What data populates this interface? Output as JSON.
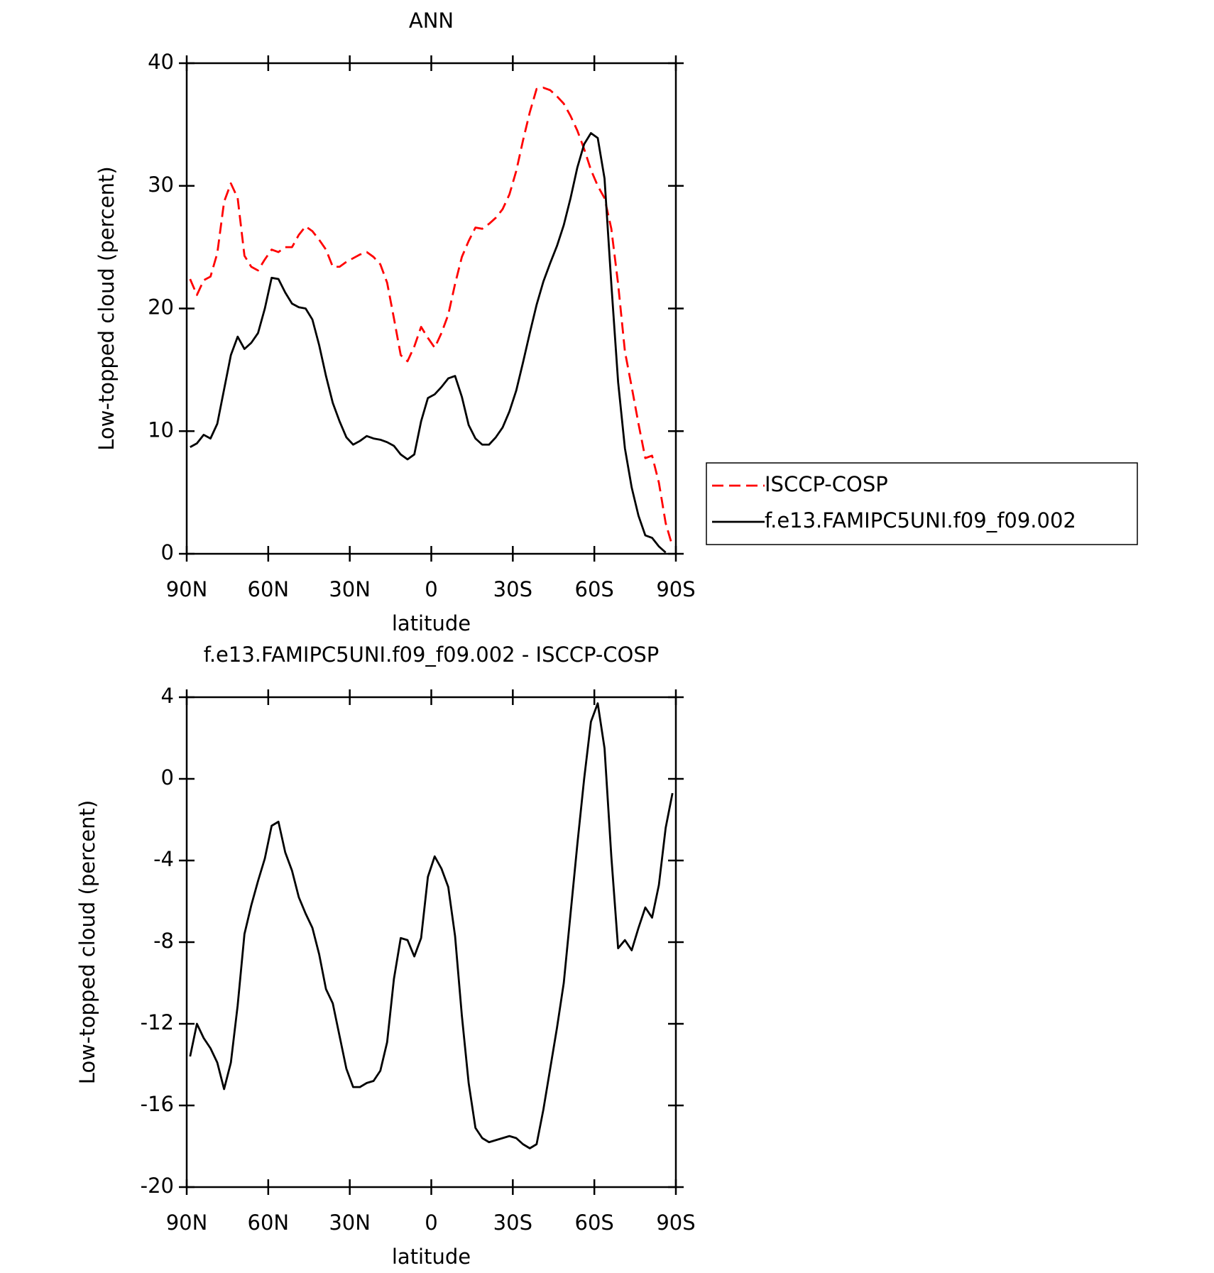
{
  "chart_data": [
    {
      "type": "line",
      "title": "ANN",
      "xlabel": "latitude",
      "ylabel": "Low-topped cloud (percent)",
      "x": [
        88.75,
        86.25,
        83.75,
        81.25,
        78.75,
        76.25,
        73.75,
        71.25,
        68.75,
        66.25,
        63.75,
        61.25,
        58.75,
        56.25,
        53.75,
        51.25,
        48.75,
        46.25,
        43.75,
        41.25,
        38.75,
        36.25,
        33.75,
        31.25,
        28.75,
        26.25,
        23.75,
        21.25,
        18.75,
        16.25,
        13.75,
        11.25,
        8.75,
        6.25,
        3.75,
        1.25,
        -1.25,
        -3.75,
        -6.25,
        -8.75,
        -11.25,
        -13.75,
        -16.25,
        -18.75,
        -21.25,
        -23.75,
        -26.25,
        -28.75,
        -31.25,
        -33.75,
        -36.25,
        -38.75,
        -41.25,
        -43.75,
        -46.25,
        -48.75,
        -51.25,
        -53.75,
        -56.25,
        -58.75,
        -61.25,
        -63.75,
        -66.25,
        -68.75,
        -71.25,
        -73.75,
        -76.25,
        -78.75,
        -81.25,
        -83.75,
        -86.25,
        -88.75
      ],
      "series": [
        {
          "name": "ISCCP-COSP",
          "color": "#ff0000",
          "line_style": "dashed",
          "values": [
            22.4,
            21.1,
            22.3,
            22.6,
            24.5,
            28.7,
            30.2,
            29.0,
            24.3,
            23.4,
            23.1,
            24.0,
            24.8,
            24.6,
            25.0,
            25.0,
            26.0,
            26.7,
            26.3,
            25.6,
            24.8,
            23.4,
            23.4,
            23.8,
            24.1,
            24.4,
            24.6,
            24.2,
            23.6,
            22.1,
            19.2,
            16.2,
            15.7,
            16.9,
            18.5,
            17.6,
            16.8,
            18.0,
            19.5,
            22.0,
            24.2,
            25.5,
            26.6,
            26.5,
            26.9,
            27.4,
            28.1,
            29.3,
            31.2,
            33.7,
            36.0,
            37.9,
            38.0,
            37.8,
            37.3,
            36.7,
            35.7,
            34.5,
            33.0,
            31.3,
            30.0,
            29.0,
            26.5,
            22.0,
            16.5,
            13.6,
            10.6,
            7.8,
            8.0,
            5.8,
            2.5,
            0.6
          ]
        },
        {
          "name": "f.e13.FAMIPC5UNI.f09_f09.002",
          "color": "#000000",
          "line_style": "solid",
          "values": [
            8.7,
            9.0,
            9.7,
            9.4,
            10.6,
            13.4,
            16.2,
            17.7,
            16.7,
            17.2,
            18.0,
            20.0,
            22.5,
            22.4,
            21.3,
            20.4,
            20.1,
            20.0,
            19.1,
            17.0,
            14.5,
            12.3,
            10.8,
            9.5,
            8.9,
            9.2,
            9.6,
            9.4,
            9.3,
            9.1,
            8.8,
            8.1,
            7.7,
            8.1,
            10.8,
            12.7,
            13.0,
            13.6,
            14.3,
            14.5,
            12.8,
            10.5,
            9.4,
            8.9,
            8.9,
            9.5,
            10.3,
            11.6,
            13.3,
            15.6,
            18.0,
            20.3,
            22.2,
            23.7,
            25.1,
            26.8,
            29.0,
            31.5,
            33.4,
            34.3,
            33.9,
            30.6,
            22.0,
            14.0,
            8.6,
            5.4,
            3.1,
            1.5,
            1.3,
            0.6,
            0.1,
            null
          ]
        }
      ],
      "xlim": [
        90,
        -90
      ],
      "xticks": [
        {
          "value": 90,
          "label": "90N"
        },
        {
          "value": 60,
          "label": "60N"
        },
        {
          "value": 30,
          "label": "30N"
        },
        0,
        {
          "value": -30,
          "label": "30S"
        },
        {
          "value": -60,
          "label": "60S"
        },
        {
          "value": -90,
          "label": "90S"
        }
      ],
      "ylim": [
        0,
        40
      ],
      "yticks": [
        0,
        10,
        20,
        30,
        40
      ],
      "legend": "outside right"
    },
    {
      "type": "line",
      "title": "f.e13.FAMIPC5UNI.f09_f09.002 - ISCCP-COSP",
      "xlabel": "latitude",
      "ylabel": "Low-topped cloud (percent)",
      "x": [
        88.75,
        86.25,
        83.75,
        81.25,
        78.75,
        76.25,
        73.75,
        71.25,
        68.75,
        66.25,
        63.75,
        61.25,
        58.75,
        56.25,
        53.75,
        51.25,
        48.75,
        46.25,
        43.75,
        41.25,
        38.75,
        36.25,
        33.75,
        31.25,
        28.75,
        26.25,
        23.75,
        21.25,
        18.75,
        16.25,
        13.75,
        11.25,
        8.75,
        6.25,
        3.75,
        1.25,
        -1.25,
        -3.75,
        -6.25,
        -8.75,
        -11.25,
        -13.75,
        -16.25,
        -18.75,
        -21.25,
        -23.75,
        -26.25,
        -28.75,
        -31.25,
        -33.75,
        -36.25,
        -38.75,
        -41.25,
        -43.75,
        -46.25,
        -48.75,
        -51.25,
        -53.75,
        -56.25,
        -58.75,
        -61.25,
        -63.75,
        -66.25,
        -68.75,
        -71.25,
        -73.75,
        -76.25,
        -78.75,
        -81.25,
        -83.75,
        -86.25,
        -88.75
      ],
      "values": [
        -13.6,
        -12.0,
        -12.7,
        -13.2,
        -13.9,
        -15.2,
        -13.9,
        -11.1,
        -7.6,
        -6.2,
        -5.0,
        -3.9,
        -2.3,
        -2.1,
        -3.6,
        -4.5,
        -5.8,
        -6.6,
        -7.3,
        -8.6,
        -10.3,
        -11.0,
        -12.6,
        -14.2,
        -15.1,
        -15.1,
        -14.9,
        -14.8,
        -14.3,
        -12.9,
        -9.8,
        -7.8,
        -7.9,
        -8.7,
        -7.8,
        -4.8,
        -3.8,
        -4.4,
        -5.3,
        -7.7,
        -11.6,
        -14.9,
        -17.1,
        -17.6,
        -17.8,
        -17.7,
        -17.6,
        -17.5,
        -17.6,
        -17.9,
        -18.1,
        -17.9,
        -16.2,
        -14.2,
        -12.2,
        -10.0,
        -6.6,
        -3.2,
        0.0,
        2.8,
        3.7,
        1.5,
        -3.8,
        -8.3,
        -7.9,
        -8.4,
        -7.3,
        -6.3,
        -6.8,
        -5.2,
        -2.4,
        -0.7
      ],
      "color": "#000000",
      "xlim": [
        90,
        -90
      ],
      "xticks": [
        {
          "value": 90,
          "label": "90N"
        },
        {
          "value": 60,
          "label": "60N"
        },
        {
          "value": 30,
          "label": "30N"
        },
        0,
        {
          "value": -30,
          "label": "30S"
        },
        {
          "value": -60,
          "label": "60S"
        },
        {
          "value": -90,
          "label": "90S"
        }
      ],
      "ylim": [
        -20,
        4
      ],
      "yticks": [
        -20,
        -16,
        -12,
        -8,
        -4,
        0,
        4
      ]
    }
  ]
}
